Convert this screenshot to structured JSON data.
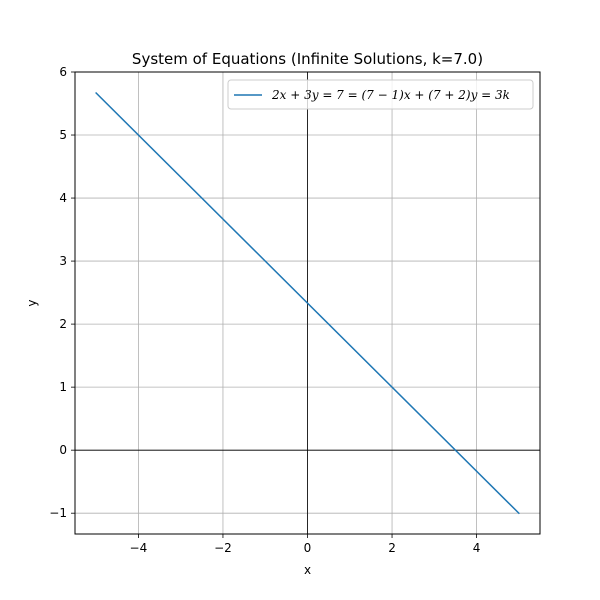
{
  "chart_data": {
    "type": "line",
    "title": "System of Equations (Infinite Solutions, k=7.0)",
    "xlabel": "x",
    "ylabel": "y",
    "xlim": [
      -5.5,
      5.5
    ],
    "ylim": [
      -1.33,
      6.0
    ],
    "xticks": [
      -4,
      -2,
      0,
      2,
      4
    ],
    "xtick_labels": [
      "−4",
      "−2",
      "0",
      "2",
      "4"
    ],
    "yticks": [
      -1,
      0,
      1,
      2,
      3,
      4,
      5,
      6
    ],
    "ytick_labels": [
      "−1",
      "0",
      "1",
      "2",
      "3",
      "4",
      "5",
      "6"
    ],
    "grid": true,
    "reference_lines": {
      "horizontal": 0,
      "vertical": 0
    },
    "legend_position": "upper-right",
    "series": [
      {
        "name": "2x + 3y = 7 = (7 − 1)x + (7 + 2)y = 3k",
        "color": "#1f77b4",
        "x": [
          -5,
          5
        ],
        "y": [
          5.6667,
          -1.0
        ]
      }
    ]
  }
}
